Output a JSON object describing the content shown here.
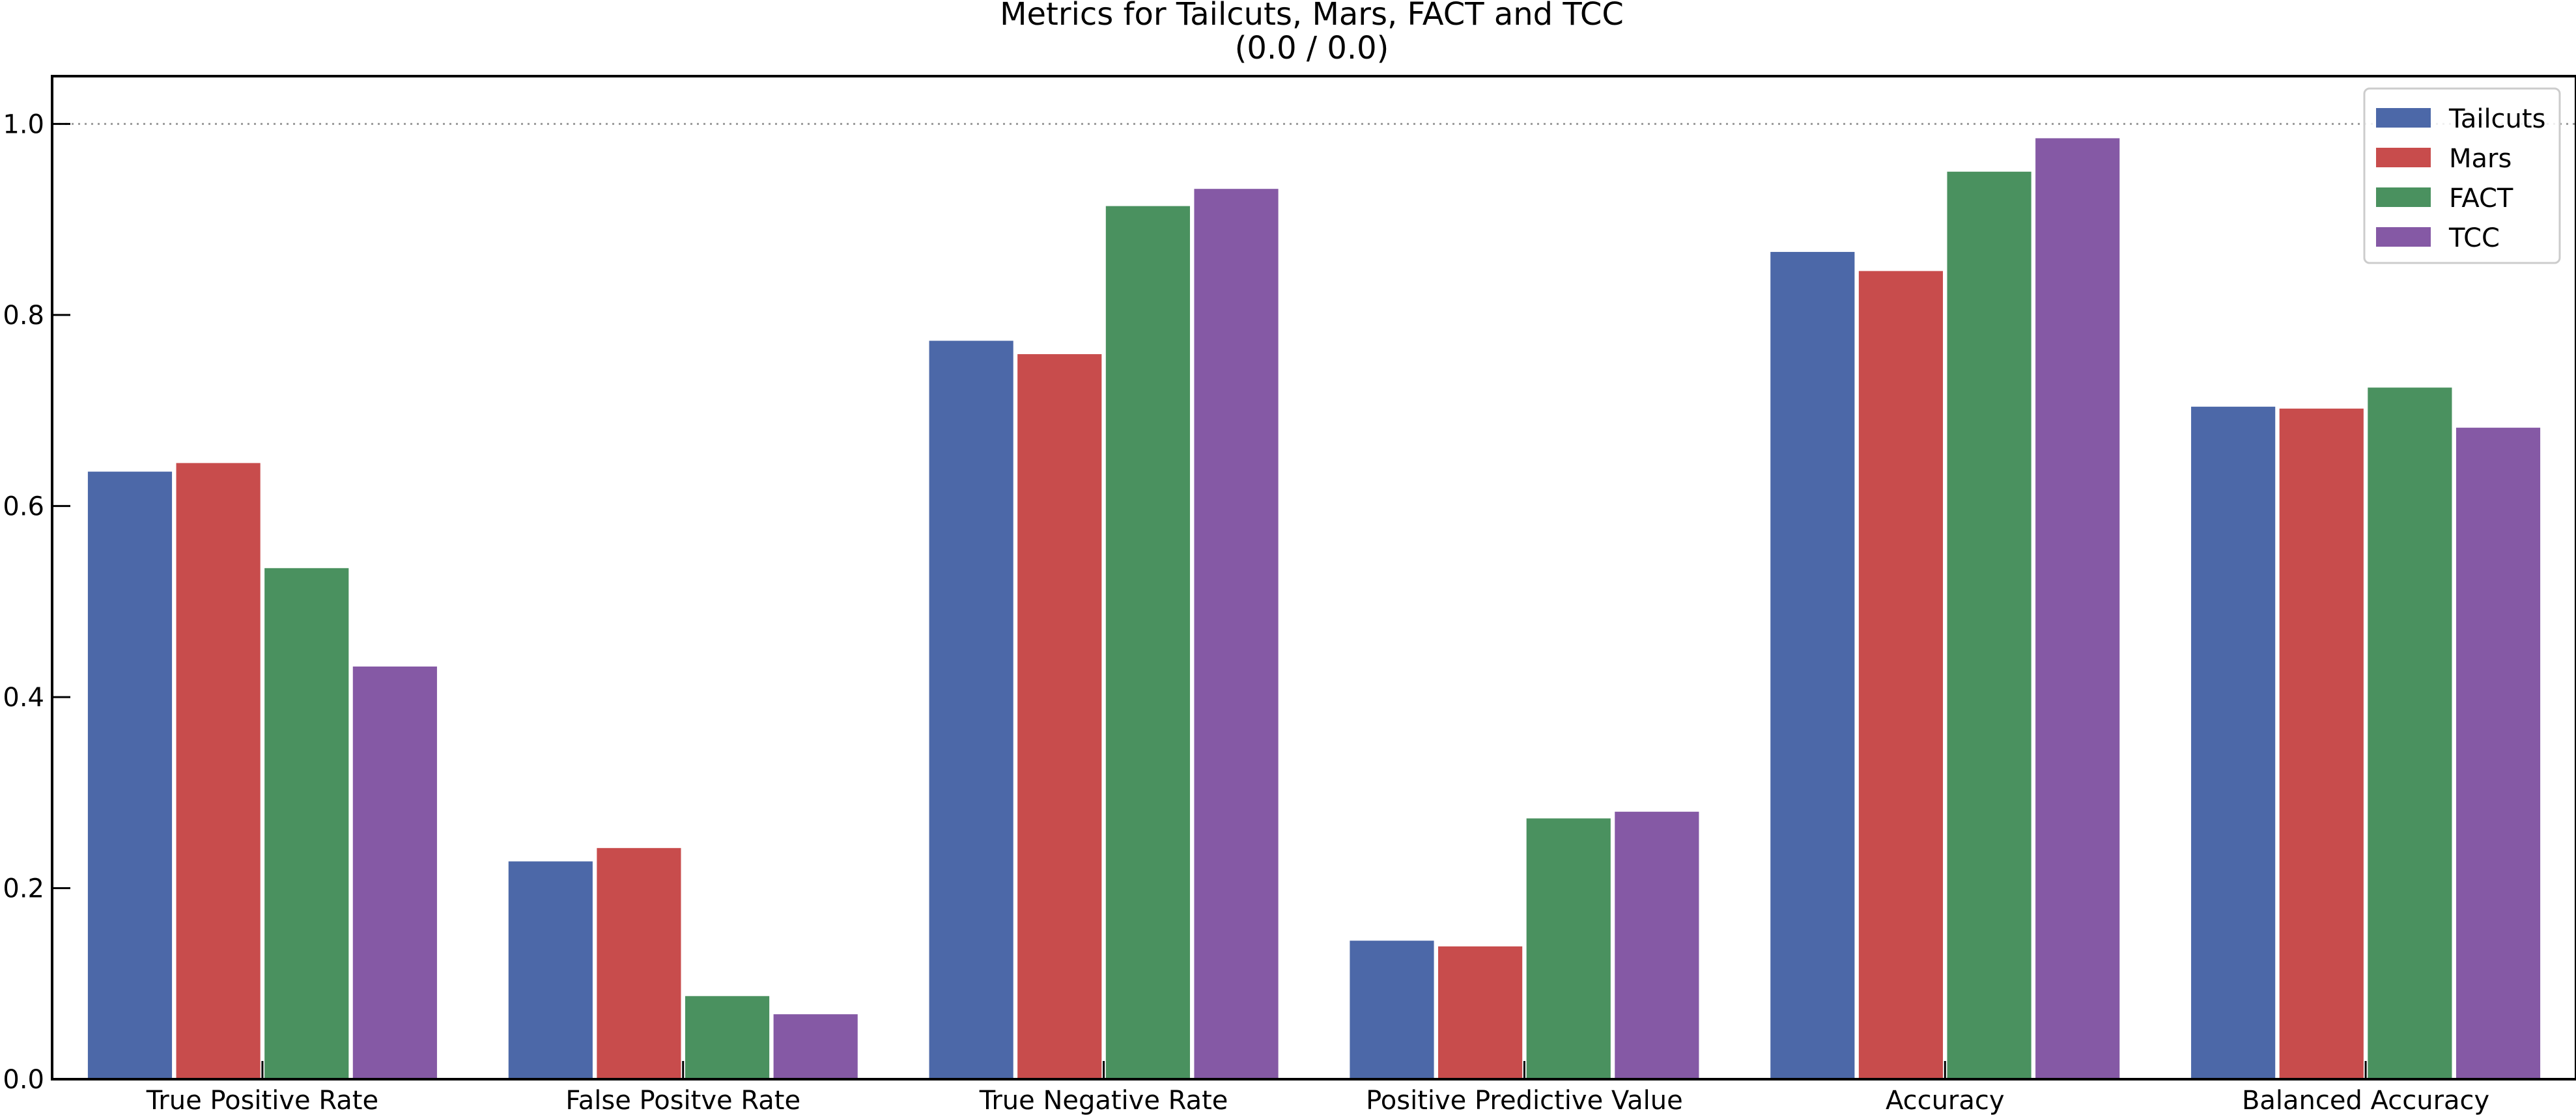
{
  "chart_data": {
    "type": "bar",
    "title": "Metrics for Tailcuts, Mars, FACT and TCC",
    "subtitle": "(0.0 / 0.0)",
    "xlabel": "",
    "ylabel": "",
    "ylim": [
      0,
      1.05
    ],
    "yticks": [
      0.0,
      0.2,
      0.4,
      0.6,
      0.8,
      1.0
    ],
    "ytick_labels": [
      "0.0",
      "0.2",
      "0.4",
      "0.6",
      "0.8",
      "1.0"
    ],
    "reference_line": 1.0,
    "legend_position": "top-right",
    "categories": [
      "True Positive Rate",
      "False Positve Rate",
      "True Negative Rate",
      "Positive Predictive Value",
      "Accuracy",
      "Balanced Accuracy"
    ],
    "series": [
      {
        "name": "Tailcuts",
        "color": "#4c68a8",
        "values": [
          0.636,
          0.228,
          0.773,
          0.145,
          0.866,
          0.704
        ]
      },
      {
        "name": "Mars",
        "color": "#c84c4c",
        "values": [
          0.645,
          0.242,
          0.759,
          0.139,
          0.846,
          0.702
        ]
      },
      {
        "name": "FACT",
        "color": "#4a915f",
        "values": [
          0.535,
          0.087,
          0.914,
          0.273,
          0.95,
          0.724
        ]
      },
      {
        "name": "TCC",
        "color": "#8559a5",
        "values": [
          0.432,
          0.068,
          0.932,
          0.28,
          0.985,
          0.682
        ]
      }
    ]
  }
}
